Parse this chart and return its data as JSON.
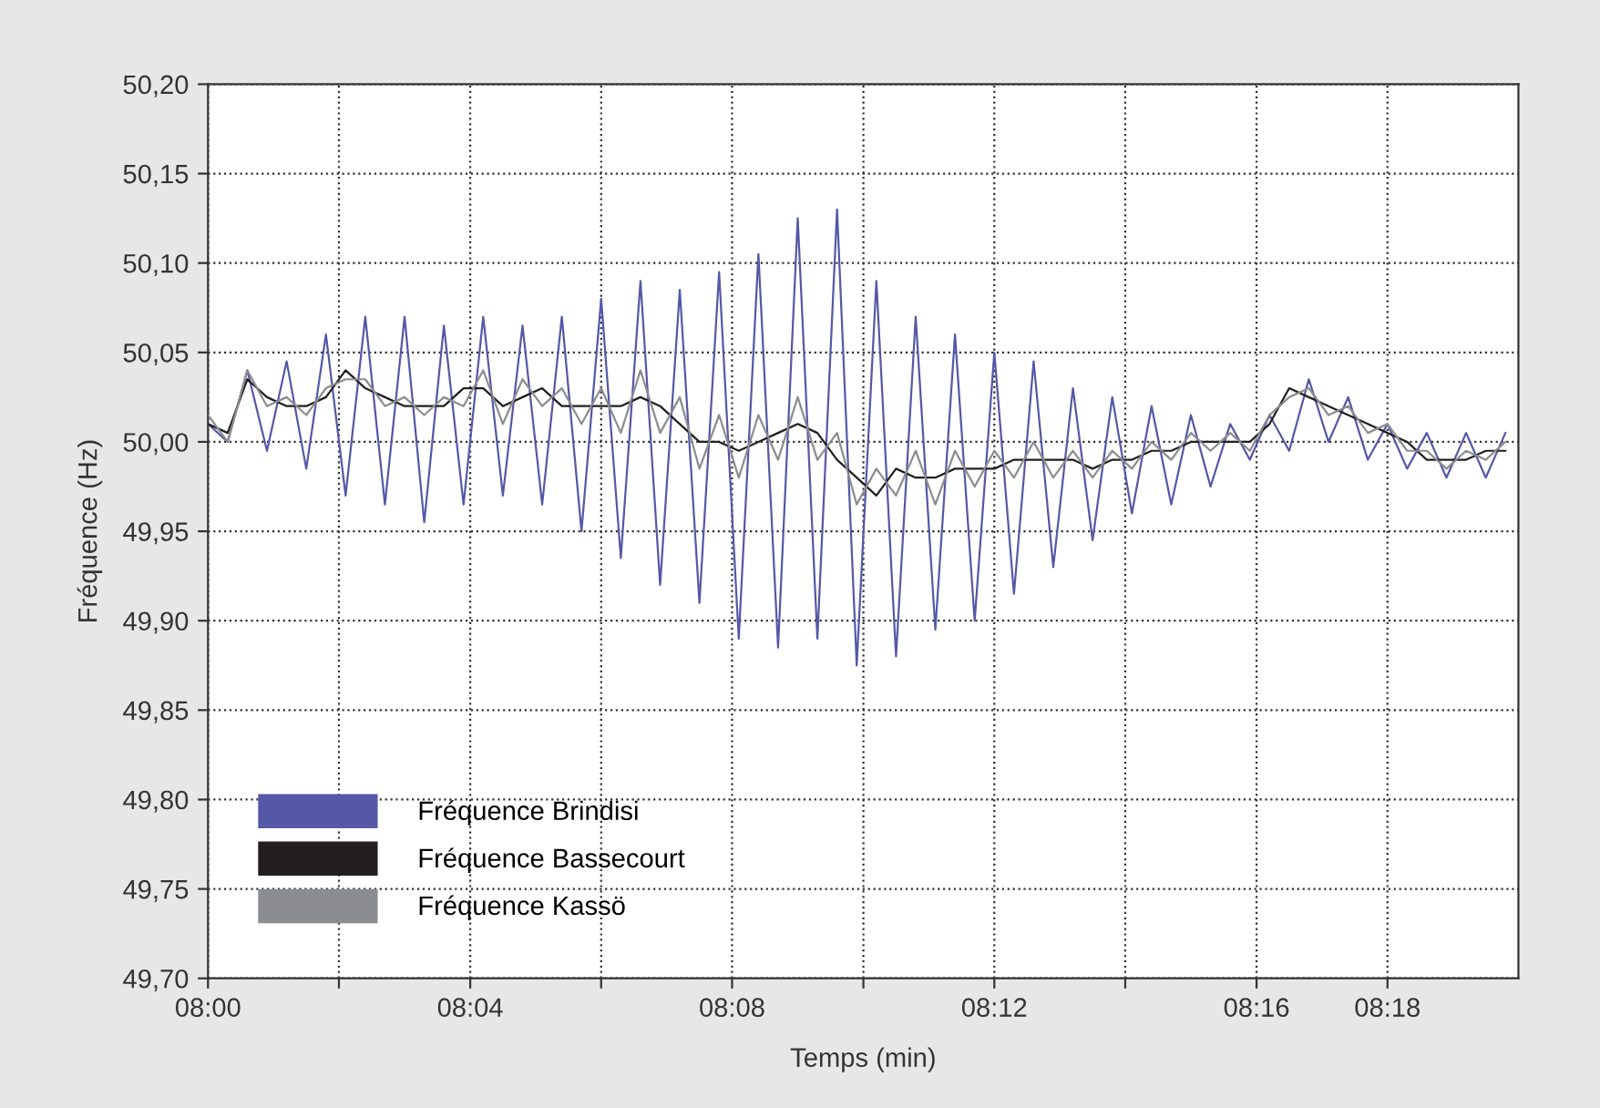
{
  "chart_data": {
    "type": "line",
    "xlabel": "Temps (min)",
    "ylabel": "Fréquence (Hz)",
    "x": [
      8.0,
      8.005,
      8.01,
      8.015,
      8.02,
      8.025,
      8.03,
      8.035,
      8.04,
      8.045,
      8.05,
      8.055,
      8.06,
      8.065,
      8.07,
      8.075,
      8.08,
      8.085,
      8.09,
      8.095,
      8.1,
      8.105,
      8.11,
      8.115,
      8.12,
      8.125,
      8.13,
      8.135,
      8.14,
      8.145,
      8.15,
      8.155,
      8.16,
      8.165,
      8.17,
      8.175,
      8.18,
      8.185,
      8.19,
      8.195,
      8.2,
      8.205,
      8.21,
      8.215,
      8.22,
      8.225,
      8.23,
      8.235,
      8.24,
      8.245,
      8.25,
      8.255,
      8.26,
      8.265,
      8.27,
      8.275,
      8.28,
      8.285,
      8.29,
      8.295,
      8.3,
      8.305,
      8.31,
      8.315,
      8.32,
      8.325,
      8.33
    ],
    "series": [
      {
        "name": "Fréquence Brindisi",
        "color": "#5558a6",
        "values": [
          50.01,
          50.0,
          50.04,
          49.995,
          50.045,
          49.985,
          50.06,
          49.97,
          50.07,
          49.965,
          50.07,
          49.955,
          50.065,
          49.965,
          50.07,
          49.97,
          50.065,
          49.965,
          50.07,
          49.95,
          50.08,
          49.935,
          50.09,
          49.92,
          50.085,
          49.91,
          50.095,
          49.89,
          50.105,
          49.885,
          50.125,
          49.89,
          50.13,
          49.875,
          50.09,
          49.88,
          50.07,
          49.895,
          50.06,
          49.9,
          50.05,
          49.915,
          50.045,
          49.93,
          50.03,
          49.945,
          50.025,
          49.96,
          50.02,
          49.965,
          50.015,
          49.975,
          50.01,
          49.99,
          50.015,
          49.995,
          50.035,
          50.0,
          50.025,
          49.99,
          50.01,
          49.985,
          50.005,
          49.98,
          50.005,
          49.98,
          50.005
        ]
      },
      {
        "name": "Fréquence Bassecourt",
        "color": "#231f20",
        "values": [
          50.01,
          50.005,
          50.035,
          50.025,
          50.02,
          50.02,
          50.025,
          50.04,
          50.03,
          50.025,
          50.02,
          50.02,
          50.02,
          50.03,
          50.03,
          50.02,
          50.025,
          50.03,
          50.02,
          50.02,
          50.02,
          50.02,
          50.025,
          50.02,
          50.01,
          50.0,
          50.0,
          49.995,
          50.0,
          50.005,
          50.01,
          50.005,
          49.99,
          49.98,
          49.97,
          49.985,
          49.98,
          49.98,
          49.985,
          49.985,
          49.985,
          49.99,
          49.99,
          49.99,
          49.99,
          49.985,
          49.99,
          49.99,
          49.995,
          49.995,
          50.0,
          50.0,
          50.0,
          50.0,
          50.01,
          50.03,
          50.025,
          50.02,
          50.015,
          50.01,
          50.005,
          50.0,
          49.99,
          49.99,
          49.99,
          49.995,
          49.995
        ]
      },
      {
        "name": "Fréquence Kassö",
        "color": "#8c8d90",
        "values": [
          50.015,
          50.0,
          50.04,
          50.02,
          50.025,
          50.015,
          50.03,
          50.035,
          50.035,
          50.02,
          50.025,
          50.015,
          50.025,
          50.02,
          50.04,
          50.01,
          50.035,
          50.02,
          50.03,
          50.01,
          50.03,
          50.005,
          50.04,
          50.005,
          50.025,
          49.985,
          50.015,
          49.98,
          50.015,
          49.99,
          50.025,
          49.99,
          50.005,
          49.965,
          49.985,
          49.97,
          49.995,
          49.965,
          49.995,
          49.975,
          49.995,
          49.98,
          50.0,
          49.98,
          49.995,
          49.98,
          49.995,
          49.985,
          50.0,
          49.99,
          50.005,
          49.995,
          50.005,
          49.995,
          50.015,
          50.025,
          50.03,
          50.015,
          50.02,
          50.005,
          50.01,
          49.995,
          49.995,
          49.985,
          49.995,
          49.99,
          50.0
        ]
      }
    ],
    "xlim": [
      8.0,
      8.3333
    ],
    "xticks": [
      {
        "value": 8.0,
        "label": "08:00"
      },
      {
        "value": 8.0333,
        "label": null
      },
      {
        "value": 8.0667,
        "label": "08:04"
      },
      {
        "value": 8.1,
        "label": null
      },
      {
        "value": 8.1333,
        "label": "08:08"
      },
      {
        "value": 8.1667,
        "label": null
      },
      {
        "value": 8.2,
        "label": "08:12"
      },
      {
        "value": 8.2333,
        "label": null
      },
      {
        "value": 8.2667,
        "label": "08:16"
      },
      {
        "value": 8.3,
        "label": "08:18"
      }
    ],
    "ylim": [
      49.7,
      50.2
    ],
    "yticks": [
      {
        "value": 49.7,
        "label": "49,70"
      },
      {
        "value": 49.75,
        "label": "49,75"
      },
      {
        "value": 49.8,
        "label": "49,80"
      },
      {
        "value": 49.85,
        "label": "49,85"
      },
      {
        "value": 49.9,
        "label": "49,90"
      },
      {
        "value": 49.95,
        "label": "49,95"
      },
      {
        "value": 50.0,
        "label": "50,00"
      },
      {
        "value": 50.05,
        "label": "50,05"
      },
      {
        "value": 50.1,
        "label": "50,10"
      },
      {
        "value": 50.15,
        "label": "50,15"
      },
      {
        "value": 50.2,
        "label": "50,20"
      }
    ],
    "grid": true,
    "legend": "bottom left",
    "marker": "none",
    "line_style": "solid"
  }
}
